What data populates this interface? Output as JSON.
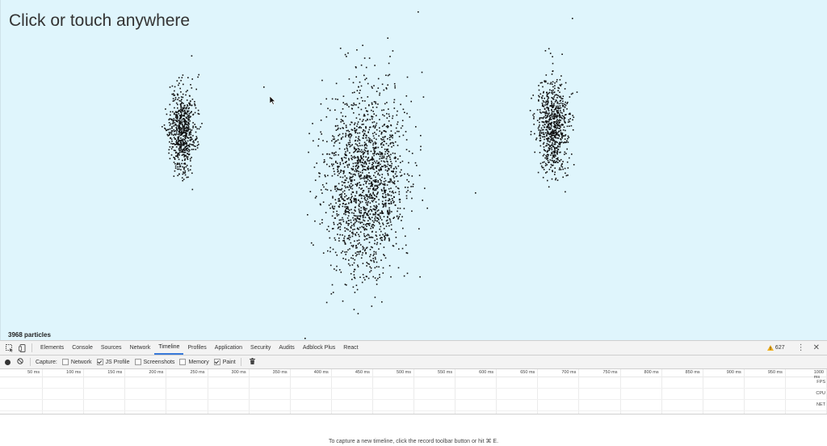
{
  "page": {
    "title": "Click or touch anywhere",
    "particle_count": "3968 particles",
    "background": "#dff5fc",
    "particle_color": "#111111"
  },
  "devtools": {
    "tabs": [
      {
        "label": "Elements",
        "active": false
      },
      {
        "label": "Console",
        "active": false
      },
      {
        "label": "Sources",
        "active": false
      },
      {
        "label": "Network",
        "active": false
      },
      {
        "label": "Timeline",
        "active": true
      },
      {
        "label": "Profiles",
        "active": false
      },
      {
        "label": "Application",
        "active": false
      },
      {
        "label": "Security",
        "active": false
      },
      {
        "label": "Audits",
        "active": false
      },
      {
        "label": "Adblock Plus",
        "active": false
      },
      {
        "label": "React",
        "active": false
      }
    ],
    "warning_count": "627",
    "warning_icon": "warning-triangle-icon",
    "capture_label": "Capture:",
    "capture_options": [
      {
        "label": "Network",
        "checked": false
      },
      {
        "label": "JS Profile",
        "checked": true
      },
      {
        "label": "Screenshots",
        "checked": false
      },
      {
        "label": "Memory",
        "checked": false
      },
      {
        "label": "Paint",
        "checked": true
      }
    ],
    "ruler_ticks": [
      "50 ms",
      "100 ms",
      "150 ms",
      "200 ms",
      "250 ms",
      "300 ms",
      "350 ms",
      "400 ms",
      "450 ms",
      "500 ms",
      "550 ms",
      "600 ms",
      "650 ms",
      "700 ms",
      "750 ms",
      "800 ms",
      "850 ms",
      "900 ms",
      "950 ms",
      "1000 ms"
    ],
    "tracks": [
      "FPS",
      "CPU",
      "NET"
    ],
    "hint": "To capture a new timeline, click the record toolbar button or hit ⌘ E.",
    "accent": "#3879d9"
  }
}
